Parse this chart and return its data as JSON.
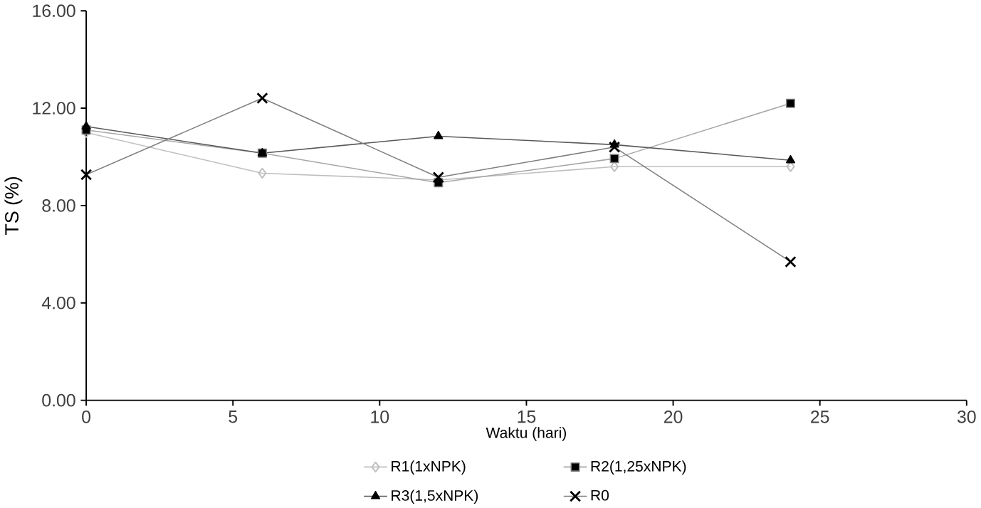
{
  "chart_data": {
    "type": "line",
    "xlabel": "Waktu (hari)",
    "ylabel": "TS (%)",
    "xlim": [
      0,
      30
    ],
    "xticks": [
      0,
      5,
      10,
      15,
      20,
      25,
      30
    ],
    "ylim": [
      0,
      16
    ],
    "yticks": [
      {
        "value": 0,
        "label": "0.00"
      },
      {
        "value": 4,
        "label": "4.00"
      },
      {
        "value": 8,
        "label": "8.00"
      },
      {
        "value": 12,
        "label": "12.00"
      },
      {
        "value": 16,
        "label": "16.00"
      }
    ],
    "x": [
      0,
      6,
      12,
      18,
      24
    ],
    "legend": "bottom",
    "grid": false,
    "series": [
      {
        "name": "R1(1xNPK)",
        "color": "#bfbfbf",
        "marker": "diamond",
        "values": [
          11.0,
          9.33,
          9.05,
          9.6,
          9.6
        ]
      },
      {
        "name": "R2(1,25xNPK)",
        "color": "#000000",
        "marker": "square",
        "values": [
          11.1,
          10.15,
          8.94,
          9.93,
          12.2
        ]
      },
      {
        "name": "R3(1,5xNPK)",
        "color": "#000000",
        "marker": "triangle",
        "values": [
          11.25,
          10.15,
          10.85,
          10.5,
          9.86
        ]
      },
      {
        "name": "R0",
        "color": "#000000",
        "marker": "cross",
        "values": [
          9.27,
          12.41,
          9.16,
          10.4,
          5.69
        ]
      }
    ]
  }
}
